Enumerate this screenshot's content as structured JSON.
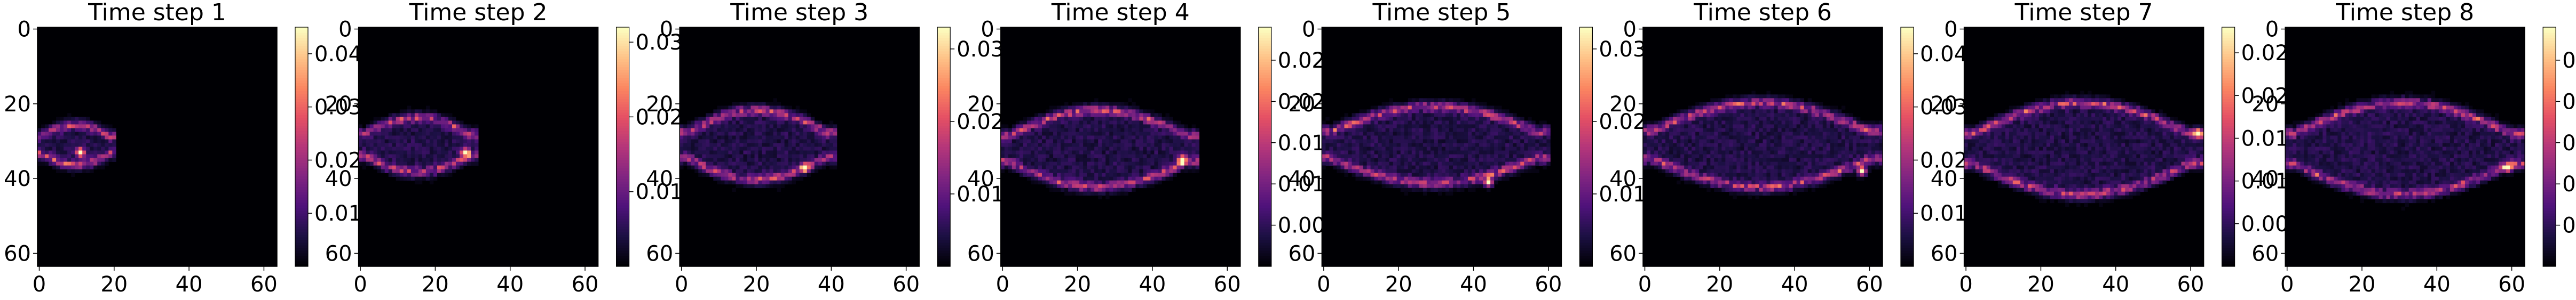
{
  "colormap": "magma",
  "chart_data": [
    {
      "type": "heatmap",
      "title": "Time step 1",
      "colorbar_ticks": [
        "0.01",
        "0.02",
        "0.03",
        "0.04"
      ],
      "x_ticks": [
        "0",
        "20",
        "40",
        "60"
      ],
      "y_ticks": [
        "0",
        "20",
        "40",
        "60"
      ],
      "grid_size": [
        64,
        64
      ],
      "vmax": 0.045,
      "front_x_start": 0,
      "front_x_end": 20,
      "front_center_y": 31,
      "front_width": 8,
      "peak": [
        11,
        33
      ]
    },
    {
      "type": "heatmap",
      "title": "Time step 2",
      "colorbar_ticks": [
        "0.01",
        "0.02",
        "0.03"
      ],
      "x_ticks": [
        "0",
        "20",
        "40",
        "60"
      ],
      "y_ticks": [
        "0",
        "20",
        "40",
        "60"
      ],
      "grid_size": [
        64,
        64
      ],
      "vmax": 0.032,
      "front_x_start": 0,
      "front_x_end": 31,
      "front_center_y": 31,
      "front_width": 12,
      "peak": [
        28,
        33
      ]
    },
    {
      "type": "heatmap",
      "title": "Time step 3",
      "colorbar_ticks": [
        "0.01",
        "0.02",
        "0.03"
      ],
      "x_ticks": [
        "0",
        "20",
        "40",
        "60"
      ],
      "y_ticks": [
        "0",
        "20",
        "40",
        "60"
      ],
      "grid_size": [
        64,
        64
      ],
      "vmax": 0.033,
      "front_x_start": 0,
      "front_x_end": 41,
      "front_center_y": 31,
      "front_width": 16,
      "peak": [
        33,
        37
      ]
    },
    {
      "type": "heatmap",
      "title": "Time step 4",
      "colorbar_ticks": [
        "0.005",
        "0.010",
        "0.015",
        "0.020",
        "0.025"
      ],
      "x_ticks": [
        "0",
        "20",
        "40",
        "60"
      ],
      "y_ticks": [
        "0",
        "20",
        "40",
        "60"
      ],
      "grid_size": [
        64,
        64
      ],
      "vmax": 0.029,
      "front_x_start": 0,
      "front_x_end": 52,
      "front_center_y": 32,
      "front_width": 18,
      "peak": [
        48,
        35
      ]
    },
    {
      "type": "heatmap",
      "title": "Time step 5",
      "colorbar_ticks": [
        "0.01",
        "0.02",
        "0.03"
      ],
      "x_ticks": [
        "0",
        "20",
        "40",
        "60"
      ],
      "y_ticks": [
        "0",
        "20",
        "40",
        "60"
      ],
      "grid_size": [
        64,
        64
      ],
      "vmax": 0.033,
      "front_x_start": 0,
      "front_x_end": 60,
      "front_center_y": 31,
      "front_width": 18,
      "peak": [
        44,
        41
      ]
    },
    {
      "type": "heatmap",
      "title": "Time step 6",
      "colorbar_ticks": [
        "0.01",
        "0.02",
        "0.03",
        "0.04"
      ],
      "x_ticks": [
        "0",
        "20",
        "40",
        "60"
      ],
      "y_ticks": [
        "0",
        "20",
        "40",
        "60"
      ],
      "grid_size": [
        64,
        64
      ],
      "vmax": 0.045,
      "front_x_start": 0,
      "front_x_end": 63,
      "front_center_y": 31,
      "front_width": 20,
      "peak": [
        58,
        38
      ]
    },
    {
      "type": "heatmap",
      "title": "Time step 7",
      "colorbar_ticks": [
        "0.005",
        "0.010",
        "0.015",
        "0.020",
        "0.025"
      ],
      "x_ticks": [
        "0",
        "20",
        "40",
        "60"
      ],
      "y_ticks": [
        "0",
        "20",
        "40",
        "60"
      ],
      "grid_size": [
        64,
        64
      ],
      "vmax": 0.028,
      "front_x_start": 0,
      "front_x_end": 63,
      "front_center_y": 32,
      "front_width": 22,
      "peak": [
        62,
        28
      ]
    },
    {
      "type": "heatmap",
      "title": "Time step 8",
      "colorbar_ticks": [
        "0.01",
        "0.02",
        "0.03",
        "0.04",
        "0.05"
      ],
      "x_ticks": [
        "0",
        "20",
        "40",
        "60"
      ],
      "y_ticks": [
        "0",
        "20",
        "40",
        "60"
      ],
      "grid_size": [
        64,
        64
      ],
      "vmax": 0.058,
      "front_x_start": 0,
      "front_x_end": 63,
      "front_center_y": 32,
      "front_width": 22,
      "peak": [
        59,
        37
      ]
    }
  ]
}
